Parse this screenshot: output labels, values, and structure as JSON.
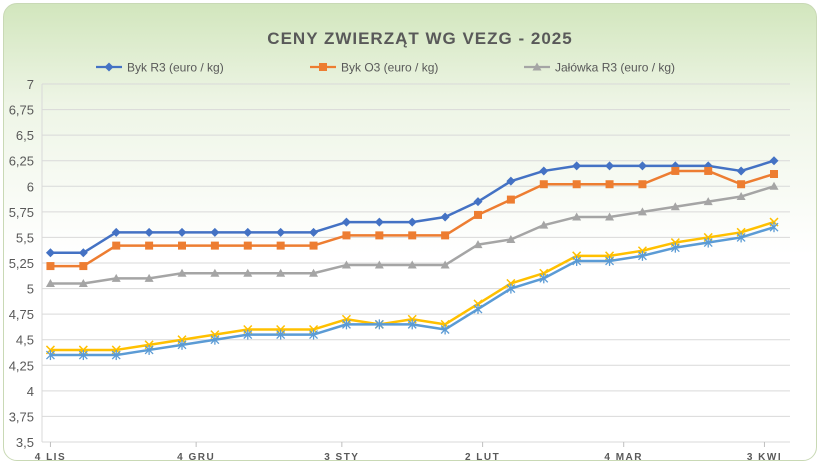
{
  "chart_data": {
    "type": "line",
    "title": "CENY ZWIERZĄT WG VEZG - 2025",
    "xlabel": "",
    "ylabel": "",
    "ylim": [
      3.5,
      7
    ],
    "yticks": [
      "3,5",
      "3,75",
      "4",
      "4,25",
      "4,5",
      "4,75",
      "5",
      "5,25",
      "5,5",
      "5,75",
      "6",
      "6,25",
      "6,5",
      "6,75",
      "7"
    ],
    "x_tick_labels": [
      {
        "label": "4 LIS",
        "index": 0
      },
      {
        "label": "4 GRU",
        "index": 4.43
      },
      {
        "label": "3 STY",
        "index": 8.86
      },
      {
        "label": "2 LUT",
        "index": 13.14
      },
      {
        "label": "4 MAR",
        "index": 17.43
      },
      {
        "label": "3 KWI",
        "index": 21.71
      }
    ],
    "n_points": 23,
    "legend_position": "top",
    "grid": true,
    "series": [
      {
        "name": "Byk R3 (euro / kg)",
        "color": "#4472c4",
        "marker": "diamond",
        "values": [
          5.35,
          5.35,
          5.55,
          5.55,
          5.55,
          5.55,
          5.55,
          5.55,
          5.55,
          5.65,
          5.65,
          5.65,
          5.7,
          5.85,
          6.05,
          6.15,
          6.2,
          6.2,
          6.2,
          6.2,
          6.2,
          6.15,
          6.25
        ]
      },
      {
        "name": "Byk O3 (euro / kg)",
        "color": "#ed7d31",
        "marker": "square",
        "values": [
          5.22,
          5.22,
          5.42,
          5.42,
          5.42,
          5.42,
          5.42,
          5.42,
          5.42,
          5.52,
          5.52,
          5.52,
          5.52,
          5.72,
          5.87,
          6.02,
          6.02,
          6.02,
          6.02,
          6.15,
          6.15,
          6.02,
          6.12
        ]
      },
      {
        "name": "Jałówka R3 (euro / kg)",
        "color": "#a5a5a5",
        "marker": "triangle",
        "values": [
          5.05,
          5.05,
          5.1,
          5.1,
          5.15,
          5.15,
          5.15,
          5.15,
          5.15,
          5.23,
          5.23,
          5.23,
          5.23,
          5.43,
          5.48,
          5.62,
          5.7,
          5.7,
          5.75,
          5.8,
          5.85,
          5.9,
          6.0
        ]
      },
      {
        "name": "",
        "color": "#ffc000",
        "marker": "x",
        "values": [
          4.4,
          4.4,
          4.4,
          4.45,
          4.5,
          4.55,
          4.6,
          4.6,
          4.6,
          4.7,
          4.65,
          4.7,
          4.65,
          4.85,
          5.05,
          5.15,
          5.32,
          5.32,
          5.37,
          5.45,
          5.5,
          5.55,
          5.65
        ]
      },
      {
        "name": "",
        "color": "#5b9bd5",
        "marker": "star",
        "values": [
          4.35,
          4.35,
          4.35,
          4.4,
          4.45,
          4.5,
          4.55,
          4.55,
          4.55,
          4.65,
          4.65,
          4.65,
          4.6,
          4.8,
          5.0,
          5.1,
          5.27,
          5.27,
          5.32,
          5.4,
          5.45,
          5.5,
          5.6
        ]
      }
    ]
  }
}
